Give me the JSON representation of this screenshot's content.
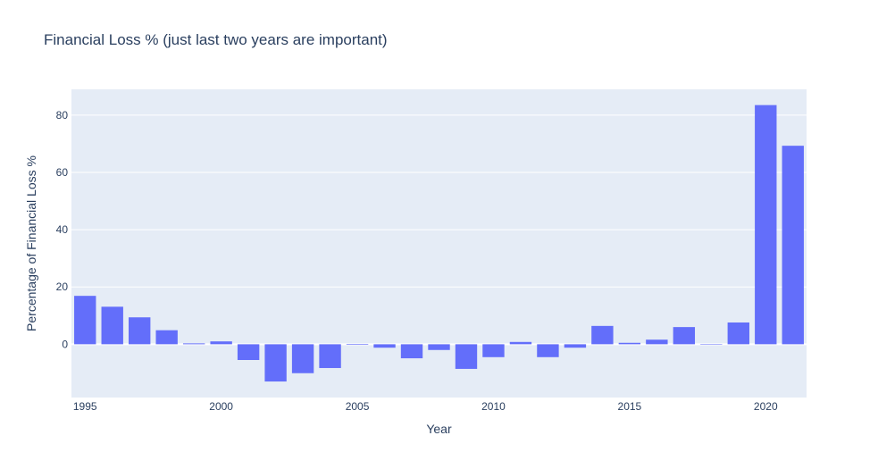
{
  "colors": {
    "plot_bg": "#e5ecf6",
    "grid": "#ffffff",
    "bar": "#636efa",
    "text": "#2a3f5f"
  },
  "chart_data": {
    "type": "bar",
    "title": "Financial Loss % (just last two years are important)",
    "xlabel": "Year",
    "ylabel": "Percentage of Financial Loss %",
    "x": [
      1995,
      1996,
      1997,
      1998,
      1999,
      2000,
      2001,
      2002,
      2003,
      2004,
      2005,
      2006,
      2007,
      2008,
      2009,
      2010,
      2011,
      2012,
      2013,
      2014,
      2015,
      2016,
      2017,
      2018,
      2019,
      2020,
      2021
    ],
    "values": [
      16.9,
      13.1,
      9.4,
      4.9,
      0.3,
      1.0,
      -5.5,
      -13.0,
      -10.1,
      -8.3,
      -0.2,
      -1.2,
      -4.9,
      -2.0,
      -8.6,
      -4.5,
      0.8,
      -4.5,
      -1.2,
      6.4,
      0.5,
      1.6,
      6.0,
      0.1,
      7.6,
      83.5,
      69.3
    ],
    "xlim": [
      1994.5,
      2021.5
    ],
    "ylim": [
      -18.6,
      89.0
    ],
    "x_ticks": [
      1995,
      2000,
      2005,
      2010,
      2015,
      2020
    ],
    "y_ticks": [
      0,
      20,
      40,
      60,
      80
    ],
    "grid": true,
    "legend": false
  }
}
